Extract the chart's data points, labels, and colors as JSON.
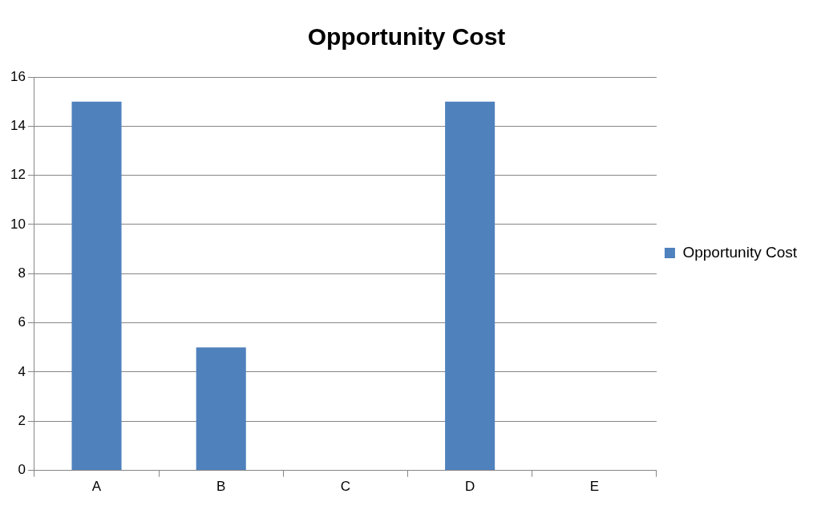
{
  "chart_data": {
    "type": "bar",
    "title": "Opportunity Cost",
    "categories": [
      "A",
      "B",
      "C",
      "D",
      "E"
    ],
    "series": [
      {
        "name": "Opportunity Cost",
        "color": "#4f81bd",
        "values": [
          15,
          5,
          0,
          15,
          0
        ]
      }
    ],
    "ylim": [
      0,
      16
    ],
    "yticks": [
      0,
      2,
      4,
      6,
      8,
      10,
      12,
      14,
      16
    ],
    "grid": "y",
    "legend": "right"
  }
}
